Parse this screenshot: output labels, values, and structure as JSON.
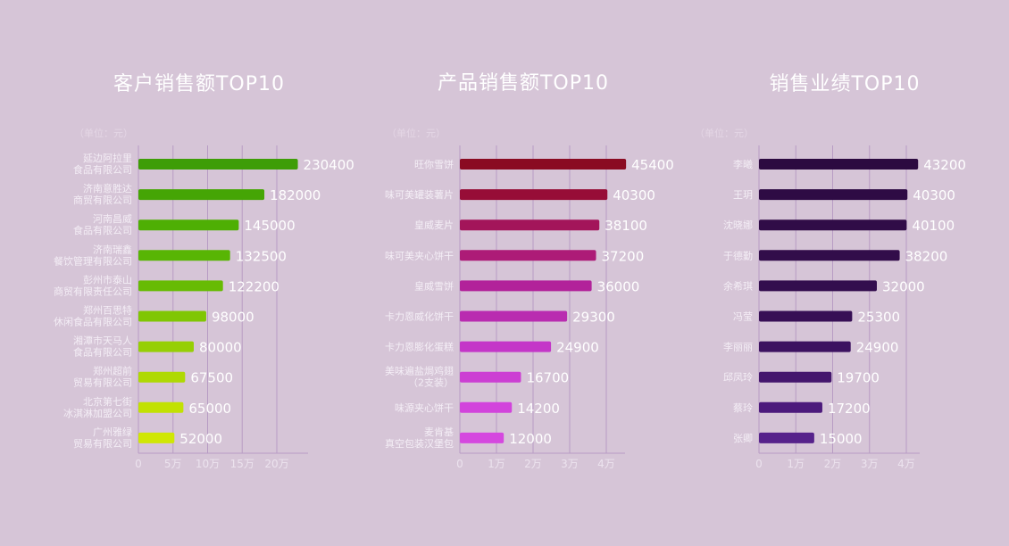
{
  "chart_data": [
    {
      "type": "bar",
      "orientation": "horizontal",
      "title": "客户销售额TOP10",
      "unit_note": "（单位：元）",
      "categories": [
        [
          "延边阿拉里",
          "食品有限公司"
        ],
        [
          "济南意胜达",
          "商贸有限公司"
        ],
        [
          "河南昌威",
          "食品有限公司"
        ],
        [
          "济南瑞鑫",
          "餐饮管理有限公司"
        ],
        [
          "彭州市泰山",
          "商贸有限责任公司"
        ],
        [
          "郑州百思特",
          "休闲食品有限公司"
        ],
        [
          "湘潭市天马人",
          "食品有限公司"
        ],
        [
          "郑州超前",
          "贸易有限公司"
        ],
        [
          "北京第七街",
          "冰淇淋加盟公司"
        ],
        [
          "广州雅绿",
          "贸易有限公司"
        ]
      ],
      "values": [
        230400,
        182000,
        145000,
        132500,
        122200,
        98000,
        80000,
        67500,
        65000,
        52000
      ],
      "value_labels": [
        "230400",
        "182000",
        "145000",
        "132500",
        "122200",
        "98000",
        "80000",
        "67500",
        "65000",
        "52000"
      ],
      "xlim": [
        0,
        250000
      ],
      "ticks": [
        0,
        50000,
        100000,
        150000,
        200000
      ],
      "tick_labels": [
        "0",
        "5万",
        "10万",
        "15万",
        "20万"
      ],
      "grid": true,
      "colors": [
        "#3e9d07",
        "#45a505",
        "#4eaf04",
        "#58b504",
        "#67bb04",
        "#80c603",
        "#96cf05",
        "#afd903",
        "#c2e102",
        "#d0e704"
      ]
    },
    {
      "type": "bar",
      "orientation": "horizontal",
      "title": "产品销售额TOP10",
      "unit_note": "（单位：元）",
      "categories": [
        [
          "旺你雪饼"
        ],
        [
          "味可美罐装薯片"
        ],
        [
          "皇威麦片"
        ],
        [
          "味可美夹心饼干"
        ],
        [
          "皇威雪饼"
        ],
        [
          "卡力恩威化饼干"
        ],
        [
          "卡力恩膨化蛋糕"
        ],
        [
          "美味遍盐焗鸡翅",
          "（2支装）"
        ],
        [
          "味源夹心饼干"
        ],
        [
          "麦肯基",
          "真空包装汉堡包"
        ]
      ],
      "values": [
        45400,
        40300,
        38100,
        37200,
        36000,
        29300,
        24900,
        16700,
        14200,
        12000
      ],
      "value_labels": [
        "45400",
        "40300",
        "38100",
        "37200",
        "36000",
        "29300",
        "24900",
        "16700",
        "14200",
        "12000"
      ],
      "xlim": [
        0,
        50000
      ],
      "ticks": [
        0,
        10000,
        20000,
        30000,
        40000
      ],
      "tick_labels": [
        "0",
        "1万",
        "2万",
        "3万",
        "4万"
      ],
      "grid": true,
      "colors": [
        "#8a0b22",
        "#970d37",
        "#a3155a",
        "#ad1b77",
        "#b2229a",
        "#b92cb0",
        "#c436c8",
        "#cc3fd3",
        "#d244dc",
        "#d548df"
      ]
    },
    {
      "type": "bar",
      "orientation": "horizontal",
      "title": "销售业绩TOP10",
      "unit_note": "（单位：元）",
      "categories": [
        [
          "李曦"
        ],
        [
          "王玥"
        ],
        [
          "沈晓娜"
        ],
        [
          "于德勤"
        ],
        [
          "余希琪"
        ],
        [
          "冯莹"
        ],
        [
          "李丽丽"
        ],
        [
          "邱凤玲"
        ],
        [
          "蔡玲"
        ],
        [
          "张卿"
        ]
      ],
      "values": [
        43200,
        40300,
        40100,
        38200,
        32000,
        25300,
        24900,
        19700,
        17200,
        15000
      ],
      "value_labels": [
        "43200",
        "40300",
        "40100",
        "38200",
        "32000",
        "25300",
        "24900",
        "19700",
        "17200",
        "15000"
      ],
      "xlim": [
        0,
        45000
      ],
      "ticks": [
        0,
        10000,
        20000,
        30000,
        40000
      ],
      "tick_labels": [
        "0",
        "1万",
        "2万",
        "3万",
        "4万"
      ],
      "grid": true,
      "colors": [
        "#2c0a40",
        "#2e0b44",
        "#300c47",
        "#320d4a",
        "#330e4e",
        "#370f55",
        "#3c1260",
        "#44166d",
        "#4c1a7c",
        "#56228b"
      ]
    }
  ]
}
